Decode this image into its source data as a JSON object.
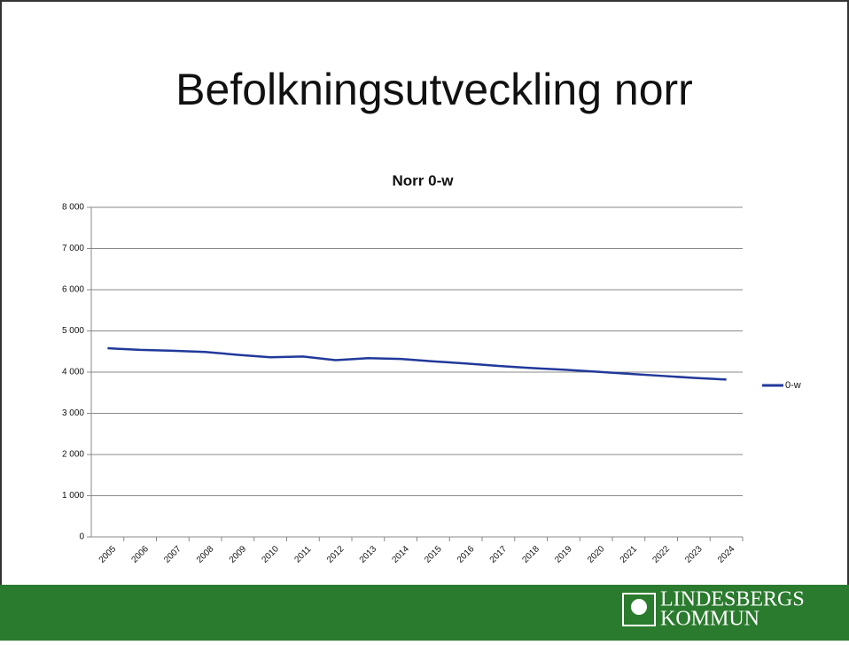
{
  "slide_title": "Befolkningsutveckling norr",
  "footer": {
    "logo_line1": "LINDESBERGS",
    "logo_line2": "KOMMUN"
  },
  "chart_data": {
    "type": "line",
    "title": "Norr 0-w",
    "categories": [
      "2005",
      "2006",
      "2007",
      "2008",
      "2009",
      "2010",
      "2011",
      "2012",
      "2013",
      "2014",
      "2015",
      "2016",
      "2017",
      "2018",
      "2019",
      "2020",
      "2021",
      "2022",
      "2023",
      "2024"
    ],
    "series": [
      {
        "name": "0-w",
        "color": "#21399a",
        "values": [
          4580,
          4540,
          4520,
          4490,
          4420,
          4360,
          4380,
          4290,
          4340,
          4320,
          4260,
          4210,
          4150,
          4100,
          4060,
          4010,
          3960,
          3910,
          3860,
          3820
        ]
      }
    ],
    "ylim": [
      0,
      8000
    ],
    "yticks": [
      0,
      {
        "value": 1000,
        "label": "1 000"
      },
      {
        "value": 2000,
        "label": "2 000"
      },
      {
        "value": 3000,
        "label": "3 000"
      },
      {
        "value": 4000,
        "label": "4 000"
      },
      {
        "value": 5000,
        "label": "5 000"
      },
      {
        "value": 6000,
        "label": "6 000"
      },
      {
        "value": 7000,
        "label": "7 000"
      },
      {
        "value": 8000,
        "label": "8 000"
      }
    ],
    "grid": true,
    "legend": "right"
  }
}
